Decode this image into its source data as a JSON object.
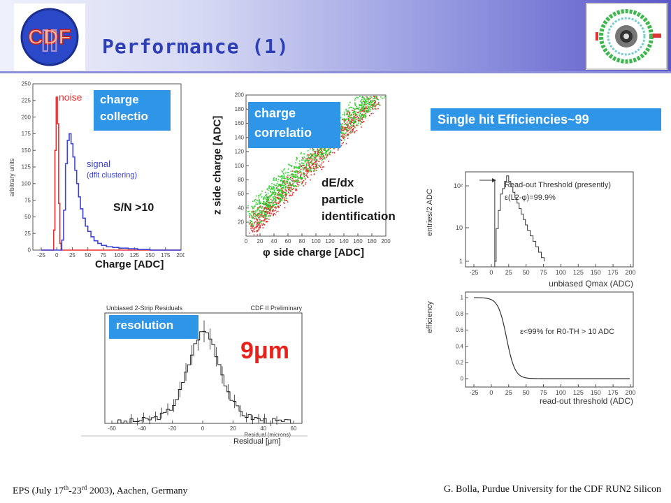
{
  "header": {
    "title": "Performance (1)",
    "logo_text": "CDF",
    "logo_numeral": "II"
  },
  "noise_plot": {
    "ylabel": "arbitrary units",
    "yticks": [
      "0",
      "25",
      "50",
      "75",
      "100",
      "125",
      "150",
      "175",
      "200",
      "225",
      "250"
    ],
    "xticks": [
      "-25",
      "0",
      "25",
      "50",
      "75",
      "100",
      "125",
      "150",
      "175",
      "200"
    ],
    "noise_label": "noise",
    "signal_label": "signal",
    "signal_sublabel": "(dflt clustering)",
    "callout_line1": "charge",
    "callout_line2": "collectio",
    "sn_text": "S/N >10",
    "xlabel": "Charge [ADC]"
  },
  "corr_plot": {
    "callout_line1": "charge",
    "callout_line2": "correlatio",
    "ylabel": "z side charge [ADC]",
    "xlabel": "side charge [ADC]",
    "phi_symbol": "φ",
    "annot_line1": "dE/dx",
    "annot_line2": "particle",
    "annot_line3": "identification",
    "xticks": [
      "0",
      "20",
      "40",
      "60",
      "80",
      "100",
      "120",
      "140",
      "160",
      "180",
      "200"
    ],
    "yticks": [
      "20",
      "40",
      "60",
      "80",
      "100",
      "120",
      "140",
      "160",
      "180",
      "200"
    ]
  },
  "efficiency": {
    "banner": "Single hit Efficiencies~99",
    "top_plot": {
      "ylabel": "entries/2 ADC",
      "yticks": [
        "1",
        "10",
        "10²"
      ],
      "legend_line1": "Read-out Threshold (presently)",
      "legend_line2": "ε(L2-φ)=99.9%",
      "xticks": [
        "-25",
        "0",
        "25",
        "50",
        "75",
        "100",
        "125",
        "150",
        "175",
        "200"
      ],
      "xlabel": "unbiased Qmax (ADC)"
    },
    "bottom_plot": {
      "ylabel": "efficiency",
      "yticks": [
        "0",
        "0.2",
        "0.4",
        "0.6",
        "0.8",
        "1"
      ],
      "annotation": "ε<99% for R0-TH > 10 ADC",
      "xticks": [
        "-25",
        "0",
        "25",
        "50",
        "75",
        "100",
        "125",
        "150",
        "175",
        "200"
      ],
      "xlabel": "read-out threshold (ADC)"
    }
  },
  "residual_plot": {
    "title_left": "Unbiased 2-Strip Residuals",
    "title_right": "CDF II Preliminary",
    "callout": "resolution",
    "big_value": "9μm",
    "xticks": [
      "-60",
      "-40",
      "-20",
      "0",
      "20",
      "40",
      "60"
    ],
    "xlabel_inner": "Residual (microns)",
    "xlabel": "Residual [μm]"
  },
  "footer": {
    "left_pre": "EPS (July 17",
    "left_sup1": "th",
    "left_mid": "-23",
    "left_sup2": "rd",
    "left_post": " 2003), Aachen, Germany",
    "right": "G. Bolla, Purdue University for the CDF RUN2 Silicon"
  }
}
